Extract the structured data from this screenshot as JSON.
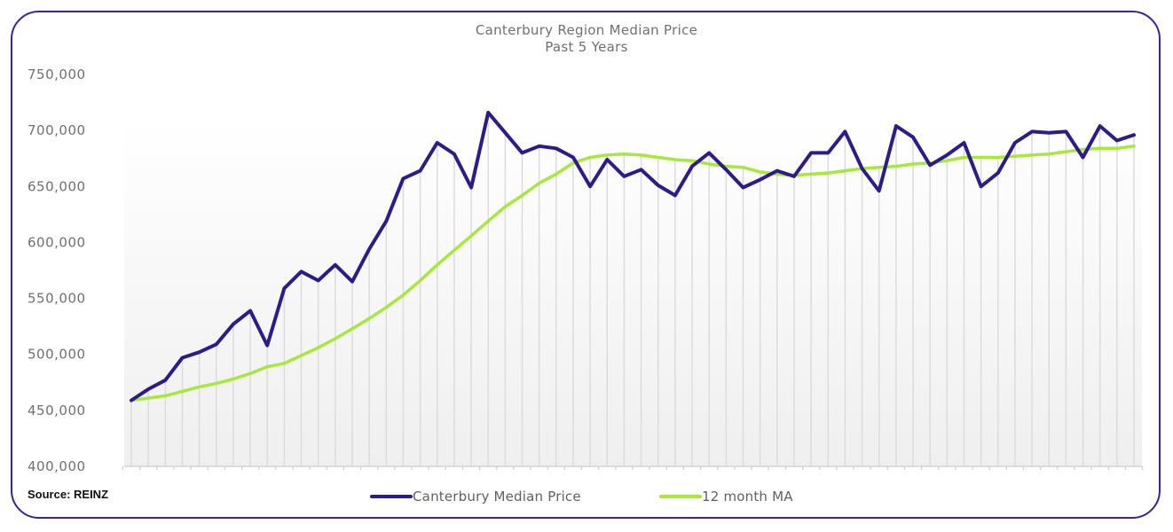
{
  "chart_data": {
    "type": "line",
    "title": "Canterbury Region Median Price",
    "subtitle": "Past 5 Years",
    "xlabel": "",
    "ylabel": "",
    "ylim": [
      400000,
      750000
    ],
    "yticks": [
      "400,000",
      "450,000",
      "500,000",
      "550,000",
      "600,000",
      "650,000",
      "700,000",
      "750,000"
    ],
    "ytick_values": [
      400000,
      450000,
      500000,
      550000,
      600000,
      650000,
      700000,
      750000
    ],
    "x_count": 60,
    "grid": "vertical",
    "legend_position": "bottom",
    "series": [
      {
        "name": "Canterbury Median Price",
        "color": "#2e1a8a",
        "values": [
          459000,
          469000,
          477000,
          497000,
          502000,
          509000,
          527000,
          539000,
          508000,
          559000,
          574000,
          566000,
          580000,
          565000,
          594000,
          619000,
          657000,
          664000,
          689000,
          679000,
          649000,
          716000,
          698000,
          680000,
          686000,
          684000,
          676000,
          650000,
          674000,
          659000,
          665000,
          651000,
          642000,
          668000,
          680000,
          665000,
          649000,
          656000,
          664000,
          659000,
          680000,
          680000,
          699000,
          666000,
          646000,
          704000,
          694000,
          669000,
          678000,
          689000,
          650000,
          662000,
          689000,
          699000,
          698000,
          699000,
          676000,
          704000,
          691000,
          696000
        ]
      },
      {
        "name": "12 month MA",
        "color": "#a6e83c",
        "values": [
          459000,
          461000,
          463000,
          467000,
          471000,
          474000,
          478000,
          483000,
          489000,
          492000,
          499000,
          506000,
          514000,
          523000,
          532000,
          542000,
          553000,
          566000,
          580000,
          593000,
          606000,
          619000,
          632000,
          642000,
          653000,
          661000,
          671000,
          676000,
          678000,
          679000,
          678000,
          676000,
          674000,
          673000,
          670000,
          668000,
          667000,
          663000,
          661000,
          660000,
          661000,
          662000,
          664000,
          666000,
          667000,
          668000,
          670000,
          671000,
          673000,
          676000,
          676000,
          676000,
          677000,
          678000,
          679000,
          681000,
          683000,
          684000,
          684000,
          686000
        ]
      }
    ]
  },
  "source": "Source: REINZ",
  "colors": {
    "border": "#3a22a0",
    "median_line": "#2e1a8a",
    "ma_line": "#a6e83c"
  }
}
